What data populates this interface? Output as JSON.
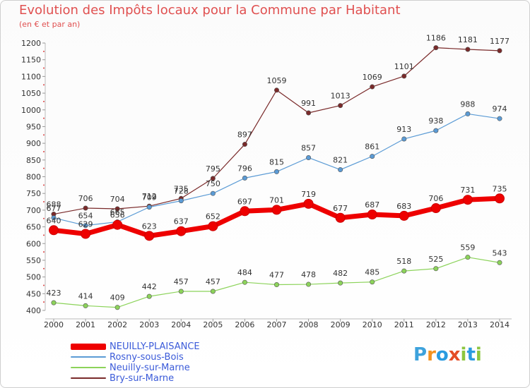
{
  "title": "Evolution des Impôts locaux pour la Commune par Habitant",
  "subtitle": "(en € et par an)",
  "logo": {
    "letters": [
      "P",
      "r",
      "o",
      "x",
      "i",
      "t",
      "i"
    ],
    "colors": [
      "#3da2dc",
      "#f39221",
      "#2a9be0",
      "#e44d26",
      "#8cc63f",
      "#2a9be0",
      "#8cc63f"
    ]
  },
  "chart_data": {
    "type": "line",
    "x": [
      2000,
      2001,
      2002,
      2003,
      2004,
      2005,
      2006,
      2007,
      2008,
      2009,
      2010,
      2011,
      2012,
      2013,
      2014
    ],
    "ylim": [
      400,
      1200
    ],
    "yticks": [
      400,
      450,
      500,
      550,
      600,
      650,
      700,
      750,
      800,
      850,
      900,
      950,
      1000,
      1050,
      1100,
      1150,
      1200
    ],
    "grid": false,
    "legend_position": "bottom-left",
    "series": [
      {
        "name": "NEUILLY-PLAISANCE",
        "color": "#ee0000",
        "values": [
          640,
          629,
          656,
          623,
          637,
          652,
          697,
          701,
          719,
          677,
          687,
          683,
          706,
          731,
          735
        ]
      },
      {
        "name": "Rosny-sous-Bois",
        "color": "#5b9bd5",
        "values": [
          677,
          654,
          665,
          709,
          728,
          750,
          796,
          815,
          857,
          821,
          861,
          913,
          938,
          988,
          974
        ]
      },
      {
        "name": "Neuilly-sur-Marne",
        "color": "#8cd35a",
        "values": [
          423,
          414,
          409,
          442,
          457,
          457,
          484,
          477,
          478,
          482,
          485,
          518,
          525,
          559,
          543
        ]
      },
      {
        "name": "Bry-sur-Marne",
        "color": "#7a2a2a",
        "values": [
          688,
          706,
          704,
          712,
          735,
          795,
          897,
          1059,
          991,
          1013,
          1069,
          1101,
          1186,
          1181,
          1177
        ]
      }
    ]
  }
}
